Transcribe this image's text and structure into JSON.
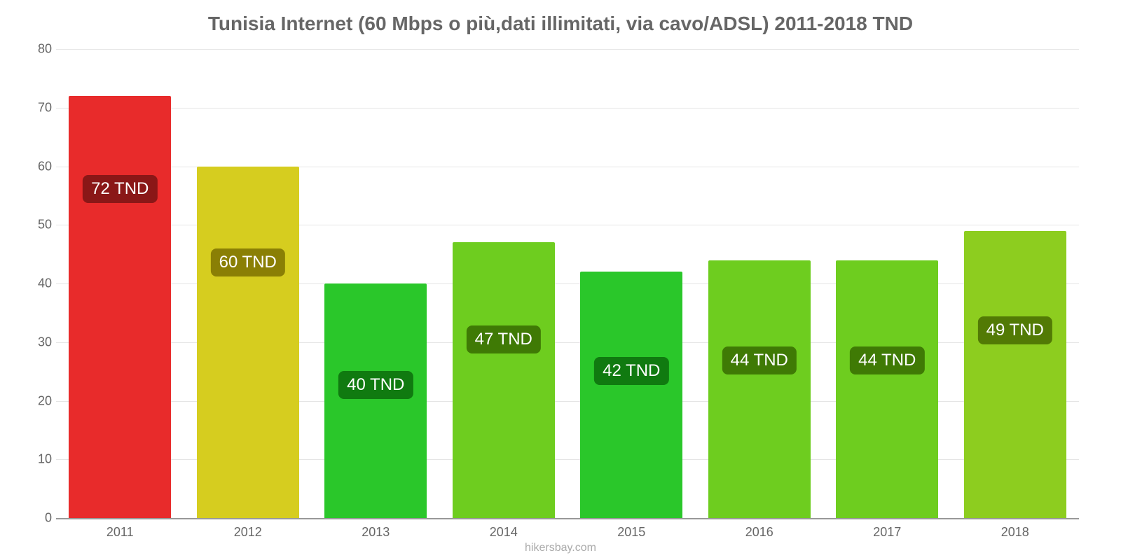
{
  "chart": {
    "type": "bar",
    "title": "Tunisia Internet (60 Mbps o più,dati illimitati, via cavo/ADSL) 2011-2018 TND",
    "title_color": "#666666",
    "title_fontsize": 28,
    "background_color": "#ffffff",
    "grid_color": "#e5e5e5",
    "axis_color": "#999999",
    "tick_color": "#666666",
    "tick_fontsize": 18,
    "ymin": 0,
    "ymax": 80,
    "ytick_step": 10,
    "yticks": [
      0,
      10,
      20,
      30,
      40,
      50,
      60,
      70,
      80
    ],
    "categories": [
      "2011",
      "2012",
      "2013",
      "2014",
      "2015",
      "2016",
      "2017",
      "2018"
    ],
    "values": [
      72,
      60,
      40,
      47,
      42,
      44,
      44,
      49
    ],
    "bar_colors": [
      "#e82b2b",
      "#d6cd1f",
      "#2ac72a",
      "#6ecd1f",
      "#2ac72a",
      "#6ecd1f",
      "#6ecd1f",
      "#8dcd1f"
    ],
    "bar_labels": [
      "72 TND",
      "60 TND",
      "40 TND",
      "47 TND",
      "42 TND",
      "44 TND",
      "44 TND",
      "49 TND"
    ],
    "bar_label_bg": [
      "#8a1717",
      "#8a7f05",
      "#107a10",
      "#3f7a05",
      "#107a10",
      "#3f7a05",
      "#3f7a05",
      "#527a05"
    ],
    "bar_label_color": "#ffffff",
    "bar_label_fontsize": 24,
    "bar_label_y_offsets": [
      180,
      285,
      460,
      395,
      440,
      425,
      425,
      382
    ],
    "bar_width_ratio": 0.8,
    "attribution": "hikersbay.com",
    "attribution_color": "#aaaaaa"
  }
}
